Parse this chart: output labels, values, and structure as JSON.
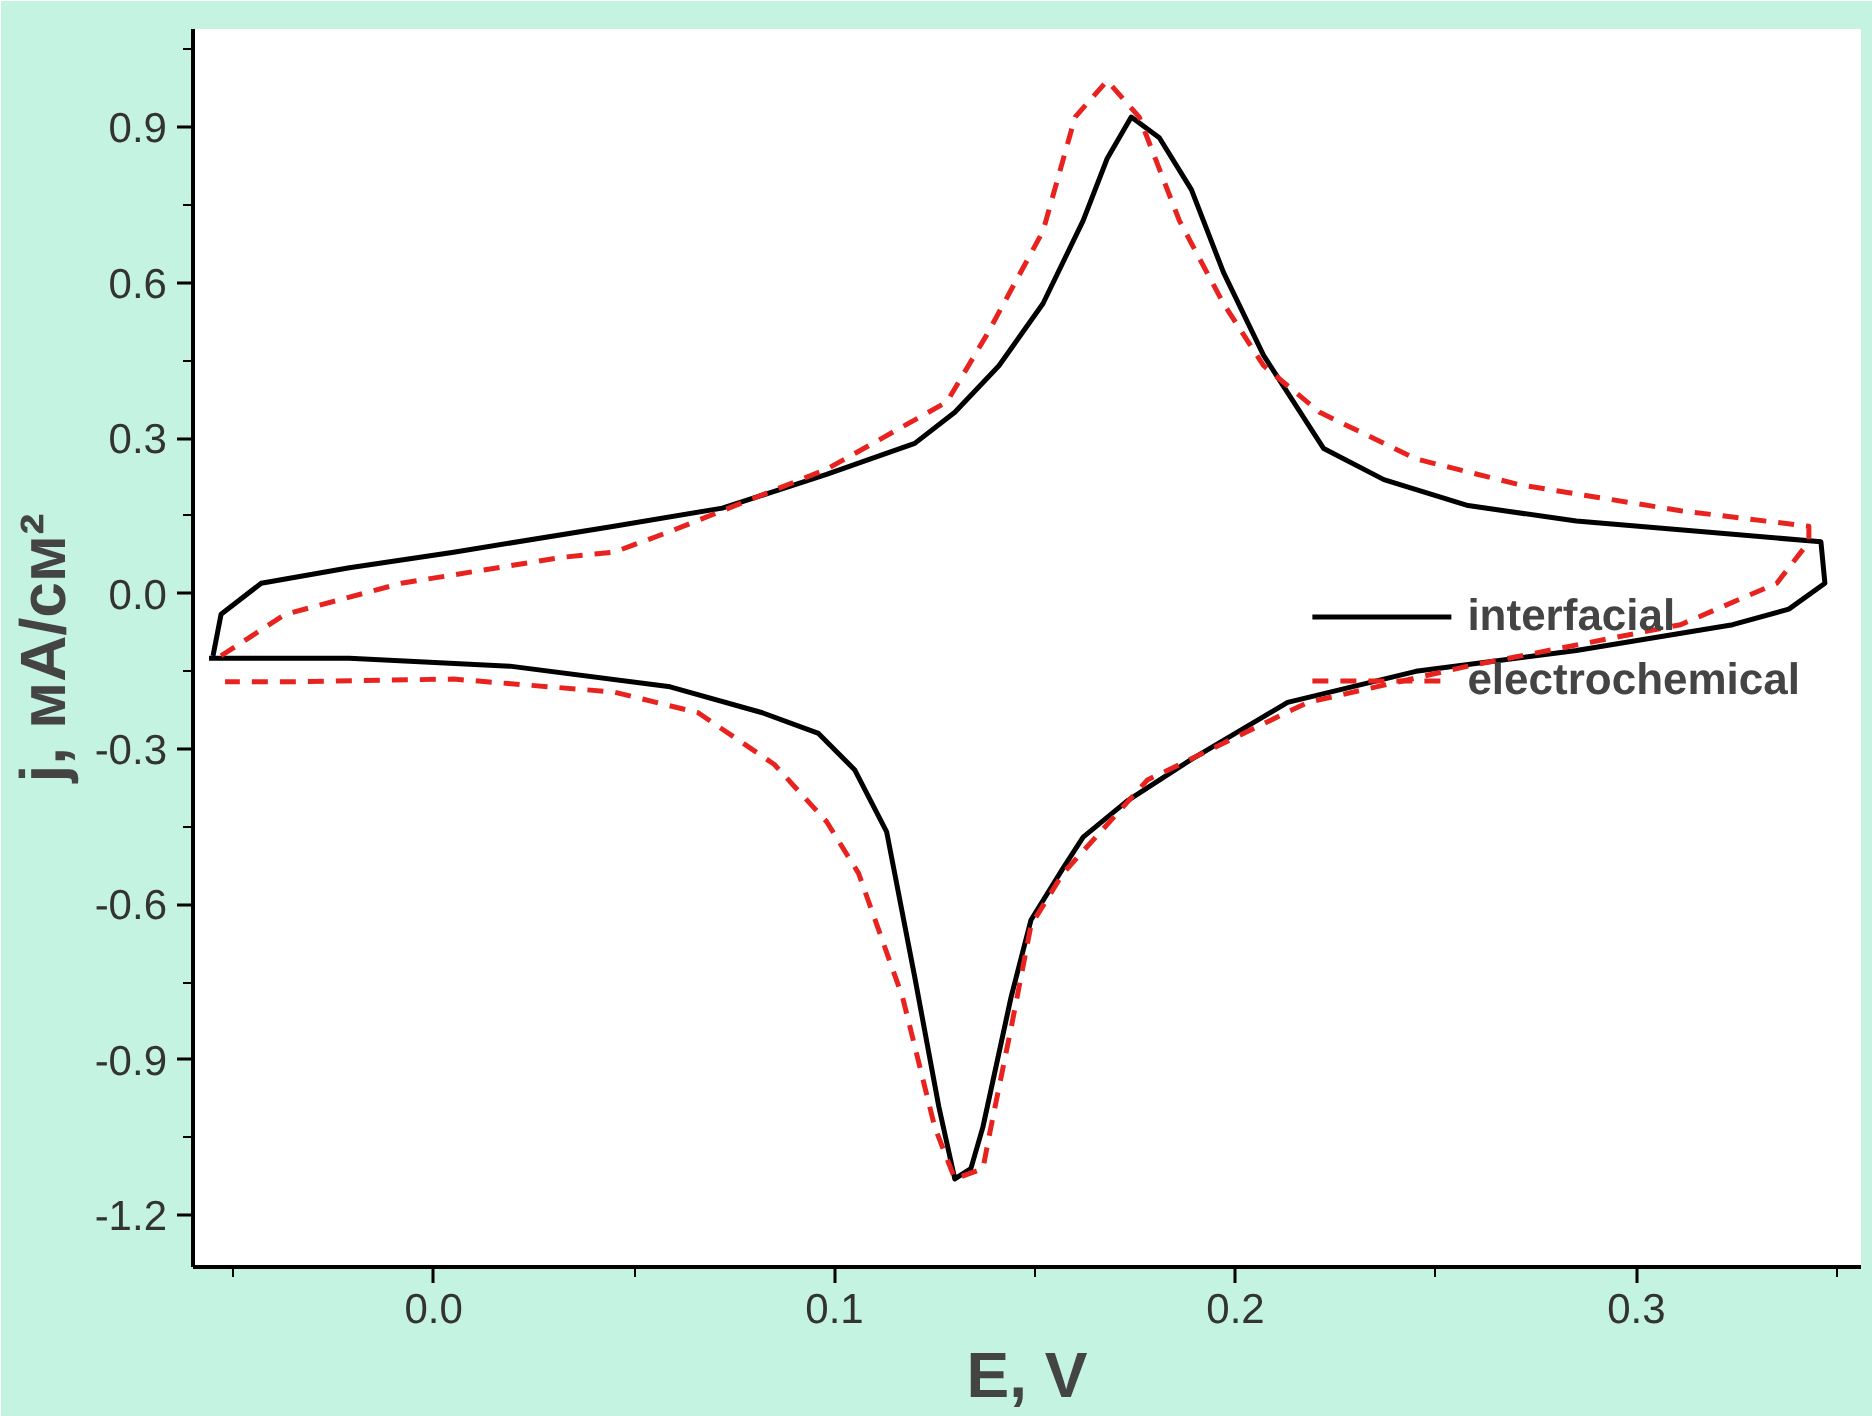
{
  "chart_data": {
    "type": "line",
    "xlabel": "E, V",
    "ylabel": "j, мА/см²",
    "xlim": [
      -0.06,
      0.356
    ],
    "ylim": [
      -1.3,
      1.09
    ],
    "xticks": [
      {
        "value": 0,
        "label": "0.0"
      },
      0.1,
      0.2,
      0.3
    ],
    "yticks": [
      -1.2,
      -0.9,
      -0.6,
      -0.3,
      {
        "value": 0,
        "label": "0.0"
      },
      0.3,
      0.6,
      0.9
    ],
    "grid": false,
    "legend": "right",
    "series": [
      {
        "name": "interfacial",
        "color": "#000000",
        "line_style": "solid",
        "x": [
          -0.055,
          -0.053,
          -0.043,
          -0.021,
          0.005,
          0.045,
          0.072,
          0.098,
          0.12,
          0.13,
          0.141,
          0.152,
          0.162,
          0.168,
          0.174,
          0.181,
          0.189,
          0.197,
          0.207,
          0.222,
          0.237,
          0.258,
          0.285,
          0.316,
          0.346,
          0.347,
          0.338,
          0.324,
          0.285,
          0.245,
          0.213,
          0.189,
          0.173,
          0.162,
          0.157,
          0.149,
          0.144,
          0.137,
          0.134,
          0.13,
          0.126,
          0.12,
          0.113,
          0.105,
          0.096,
          0.082,
          0.059,
          0.019,
          -0.021,
          -0.056
        ],
        "values": [
          -0.12,
          -0.04,
          0.02,
          0.05,
          0.08,
          0.13,
          0.165,
          0.23,
          0.29,
          0.35,
          0.44,
          0.56,
          0.72,
          0.84,
          0.92,
          0.88,
          0.78,
          0.62,
          0.46,
          0.28,
          0.22,
          0.17,
          0.14,
          0.12,
          0.1,
          0.02,
          -0.03,
          -0.06,
          -0.11,
          -0.15,
          -0.21,
          -0.32,
          -0.4,
          -0.47,
          -0.53,
          -0.63,
          -0.78,
          -1.03,
          -1.11,
          -1.13,
          -0.99,
          -0.74,
          -0.46,
          -0.34,
          -0.27,
          -0.23,
          -0.18,
          -0.14,
          -0.125,
          -0.125
        ]
      },
      {
        "name": "electrochemical",
        "color": "#e8231f",
        "line_style": "dashed",
        "x": [
          -0.053,
          -0.037,
          -0.008,
          0.032,
          0.045,
          0.059,
          0.098,
          0.128,
          0.138,
          0.152,
          0.16,
          0.168,
          0.176,
          0.186,
          0.197,
          0.207,
          0.221,
          0.245,
          0.271,
          0.311,
          0.343,
          0.343,
          0.335,
          0.311,
          0.258,
          0.218,
          0.178,
          0.157,
          0.149,
          0.144,
          0.139,
          0.137,
          0.13,
          0.125,
          0.117,
          0.106,
          0.098,
          0.085,
          0.066,
          0.045,
          0.005,
          -0.035,
          -0.052
        ],
        "values": [
          -0.12,
          -0.04,
          0.02,
          0.07,
          0.08,
          0.12,
          0.24,
          0.37,
          0.5,
          0.7,
          0.92,
          0.99,
          0.92,
          0.72,
          0.56,
          0.44,
          0.35,
          0.26,
          0.21,
          0.16,
          0.13,
          0.1,
          0.02,
          -0.06,
          -0.14,
          -0.21,
          -0.36,
          -0.54,
          -0.64,
          -0.84,
          -1.03,
          -1.11,
          -1.13,
          -1.03,
          -0.78,
          -0.54,
          -0.44,
          -0.33,
          -0.23,
          -0.19,
          -0.165,
          -0.17,
          -0.17
        ]
      }
    ]
  }
}
